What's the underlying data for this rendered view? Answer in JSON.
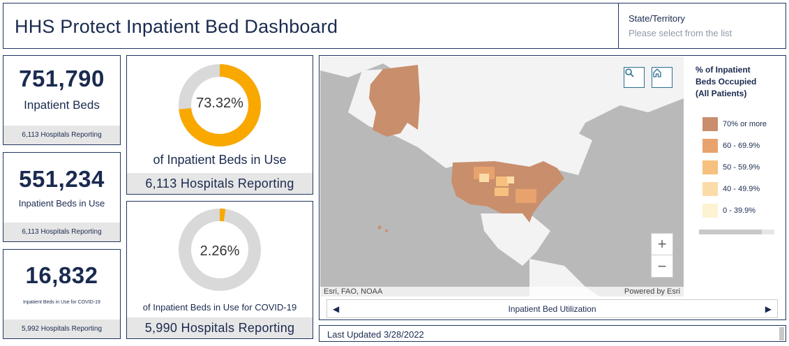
{
  "header": {
    "title": "HHS Protect Inpatient Bed Dashboard",
    "state_label": "State/Territory",
    "state_placeholder": "Please select from the list"
  },
  "stats": {
    "inpatient_beds": {
      "value": "751,790",
      "label": "Inpatient Beds",
      "footer": "6,113 Hospitals Reporting"
    },
    "beds_in_use": {
      "value": "551,234",
      "label": "Inpatient Beds in Use",
      "footer": "6,113 Hospitals Reporting"
    },
    "covid_beds": {
      "value": "16,832",
      "label": "Inpatient Beds in Use for COVID-19",
      "footer": "5,992 Hospitals Reporting"
    }
  },
  "gauges": {
    "occupancy": {
      "percent_text": "73.32%",
      "fraction": 0.7332,
      "caption": "of Inpatient Beds in Use",
      "footer": "6,113 Hospitals Reporting",
      "color": "#f9a800",
      "track_color": "#d9d9d9"
    },
    "covid": {
      "percent_text": "2.26%",
      "fraction": 0.0226,
      "caption": "of Inpatient Beds in Use for COVID-19",
      "footer": "5,990 Hospitals Reporting",
      "color": "#f9a800",
      "track_color": "#d9d9d9"
    }
  },
  "map": {
    "attribution_left": "Esri, FAO, NOAA",
    "attribution_right": "Powered by Esri",
    "search_icon": "search-icon",
    "home_icon": "home-icon",
    "zoom_in": "+",
    "zoom_out": "−",
    "legend": {
      "title": "% of Inpatient Beds Occupied (All Patients)",
      "items": [
        {
          "label": "70% or more",
          "color": "#c98e6c"
        },
        {
          "label": "60 - 69.9%",
          "color": "#e8a26d"
        },
        {
          "label": "50 - 59.9%",
          "color": "#f6c07f"
        },
        {
          "label": "40 - 49.9%",
          "color": "#fbdca9"
        },
        {
          "label": "0 - 39.9%",
          "color": "#fdf2d2"
        }
      ]
    },
    "nav": {
      "prev": "◀",
      "title": "Inpatient Bed Utilization",
      "next": "▶"
    }
  },
  "updated": {
    "text": "Last Updated 3/28/2022"
  },
  "colors": {
    "navy": "#1a2a4f",
    "land": "#f3f3f3",
    "water": "#b9b9b9"
  }
}
